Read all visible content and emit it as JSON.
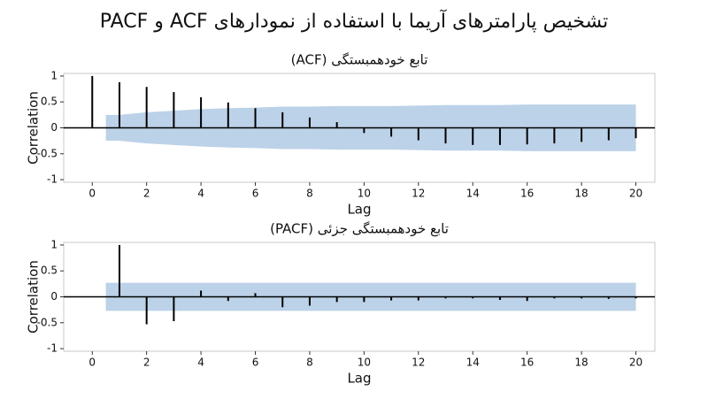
{
  "title": "تشخیص پارامترهای آریما با استفاده از نمودارهای ACF و PACF",
  "chart_data": [
    {
      "type": "stem",
      "title": "تابع خودهمبستگی (ACF)",
      "xlabel": "Lag",
      "ylabel": "Correlation",
      "x": [
        0,
        1,
        2,
        3,
        4,
        5,
        6,
        7,
        8,
        9,
        10,
        11,
        12,
        13,
        14,
        15,
        16,
        17,
        18,
        19,
        20
      ],
      "values": [
        1,
        0.88,
        0.79,
        0.69,
        0.59,
        0.49,
        0.38,
        0.3,
        0.2,
        0.11,
        -0.1,
        -0.17,
        -0.24,
        -0.3,
        -0.33,
        -0.33,
        -0.32,
        -0.3,
        -0.27,
        -0.24,
        -0.2
      ],
      "confidence": [
        null,
        0.25,
        0.3,
        0.33,
        0.36,
        0.38,
        0.39,
        0.41,
        0.41,
        0.42,
        0.42,
        0.42,
        0.43,
        0.44,
        0.44,
        0.44,
        0.45,
        0.45,
        0.45,
        0.45,
        0.45
      ],
      "color": "#000000",
      "band_color": "#bcd2e8",
      "xlim": [
        -1.05,
        20.7
      ],
      "ylim": [
        -1.05,
        1.05
      ],
      "xticks": [
        0,
        2,
        4,
        6,
        8,
        10,
        12,
        14,
        16,
        18,
        20
      ],
      "yticks": [
        1,
        0.5,
        0,
        -0.5,
        -1
      ]
    },
    {
      "type": "stem",
      "title": "تابع خودهمبستگی جزئی (PACF)",
      "xlabel": "Lag",
      "ylabel": "Correlation",
      "x": [
        1,
        2,
        3,
        4,
        5,
        6,
        7,
        8,
        9,
        10,
        11,
        12,
        13,
        14,
        15,
        16,
        17,
        18,
        19,
        20
      ],
      "values": [
        1,
        -0.53,
        -0.47,
        0.12,
        -0.08,
        0.07,
        -0.2,
        -0.17,
        -0.1,
        -0.1,
        -0.07,
        -0.07,
        -0.03,
        -0.03,
        -0.06,
        -0.08,
        -0.03,
        -0.03,
        -0.04,
        -0.03
      ],
      "confidence": [
        0.27,
        0.27,
        0.27,
        0.27,
        0.27,
        0.27,
        0.27,
        0.27,
        0.27,
        0.27,
        0.27,
        0.27,
        0.27,
        0.27,
        0.27,
        0.27,
        0.27,
        0.27,
        0.27,
        0.27
      ],
      "color": "#000000",
      "band_color": "#bcd2e8",
      "xlim": [
        -1.05,
        20.7
      ],
      "ylim": [
        -1.05,
        1.05
      ],
      "xticks": [
        0,
        2,
        4,
        6,
        8,
        10,
        12,
        14,
        16,
        18,
        20
      ],
      "yticks": [
        1,
        0.5,
        0,
        -0.5,
        -1
      ]
    }
  ]
}
